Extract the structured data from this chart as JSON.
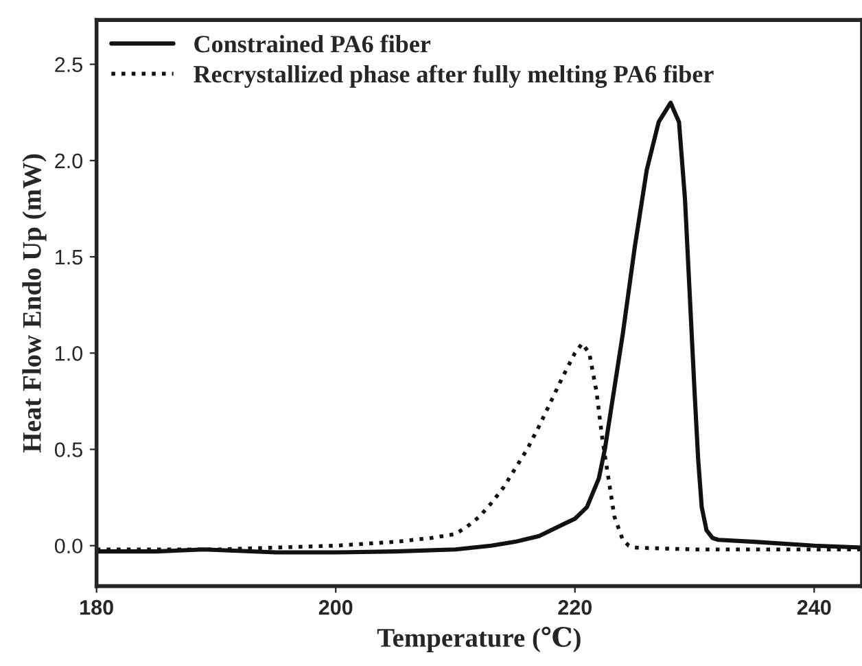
{
  "chart_data": {
    "type": "line",
    "xlabel": "Temperature (℃)",
    "ylabel": "Heat Flow Endo Up (mW)",
    "xlim": [
      180,
      244
    ],
    "xticks": [
      180,
      200,
      220,
      240
    ],
    "ylim": [
      -0.21,
      2.73
    ],
    "yticks": [
      {
        "value": 0,
        "label": "0.0"
      },
      0.5,
      {
        "value": 1,
        "label": "1.0"
      },
      1.5,
      {
        "value": 2,
        "label": "2.0"
      },
      2.5
    ],
    "legend": "top left",
    "grid": false,
    "series": [
      {
        "name": "Constrained PA6 fiber",
        "color": "#111111",
        "line_style": "solid",
        "x": [
          180,
          185,
          189,
          195,
          200,
          205,
          210,
          213,
          215,
          217,
          218,
          219,
          220,
          221,
          222,
          222.5,
          223,
          224,
          225,
          226,
          227,
          228,
          228.7,
          229.2,
          229.6,
          230,
          230.3,
          230.6,
          231,
          231.5,
          232,
          235,
          240,
          244
        ],
        "values": [
          -0.03,
          -0.03,
          -0.02,
          -0.035,
          -0.035,
          -0.03,
          -0.02,
          0.0,
          0.02,
          0.05,
          0.08,
          0.11,
          0.14,
          0.2,
          0.35,
          0.5,
          0.7,
          1.1,
          1.55,
          1.95,
          2.2,
          2.3,
          2.2,
          1.8,
          1.3,
          0.8,
          0.45,
          0.2,
          0.08,
          0.04,
          0.03,
          0.02,
          0.0,
          -0.01
        ]
      },
      {
        "name": "Recrystallized phase after fully melting PA6 fiber",
        "color": "#111111",
        "line_style": "dotted",
        "x": [
          180,
          190,
          200,
          205,
          208,
          210,
          211,
          212,
          213,
          214,
          215,
          216,
          217,
          218,
          219,
          220,
          220.6,
          221.2,
          221.8,
          222.3,
          222.8,
          223.3,
          224,
          224.5,
          225,
          230,
          244
        ],
        "values": [
          -0.02,
          -0.02,
          0.0,
          0.02,
          0.04,
          0.06,
          0.1,
          0.15,
          0.22,
          0.3,
          0.4,
          0.5,
          0.62,
          0.75,
          0.88,
          1.0,
          1.05,
          1.0,
          0.8,
          0.55,
          0.35,
          0.15,
          0.03,
          0.0,
          -0.01,
          -0.02,
          -0.02
        ]
      }
    ]
  }
}
